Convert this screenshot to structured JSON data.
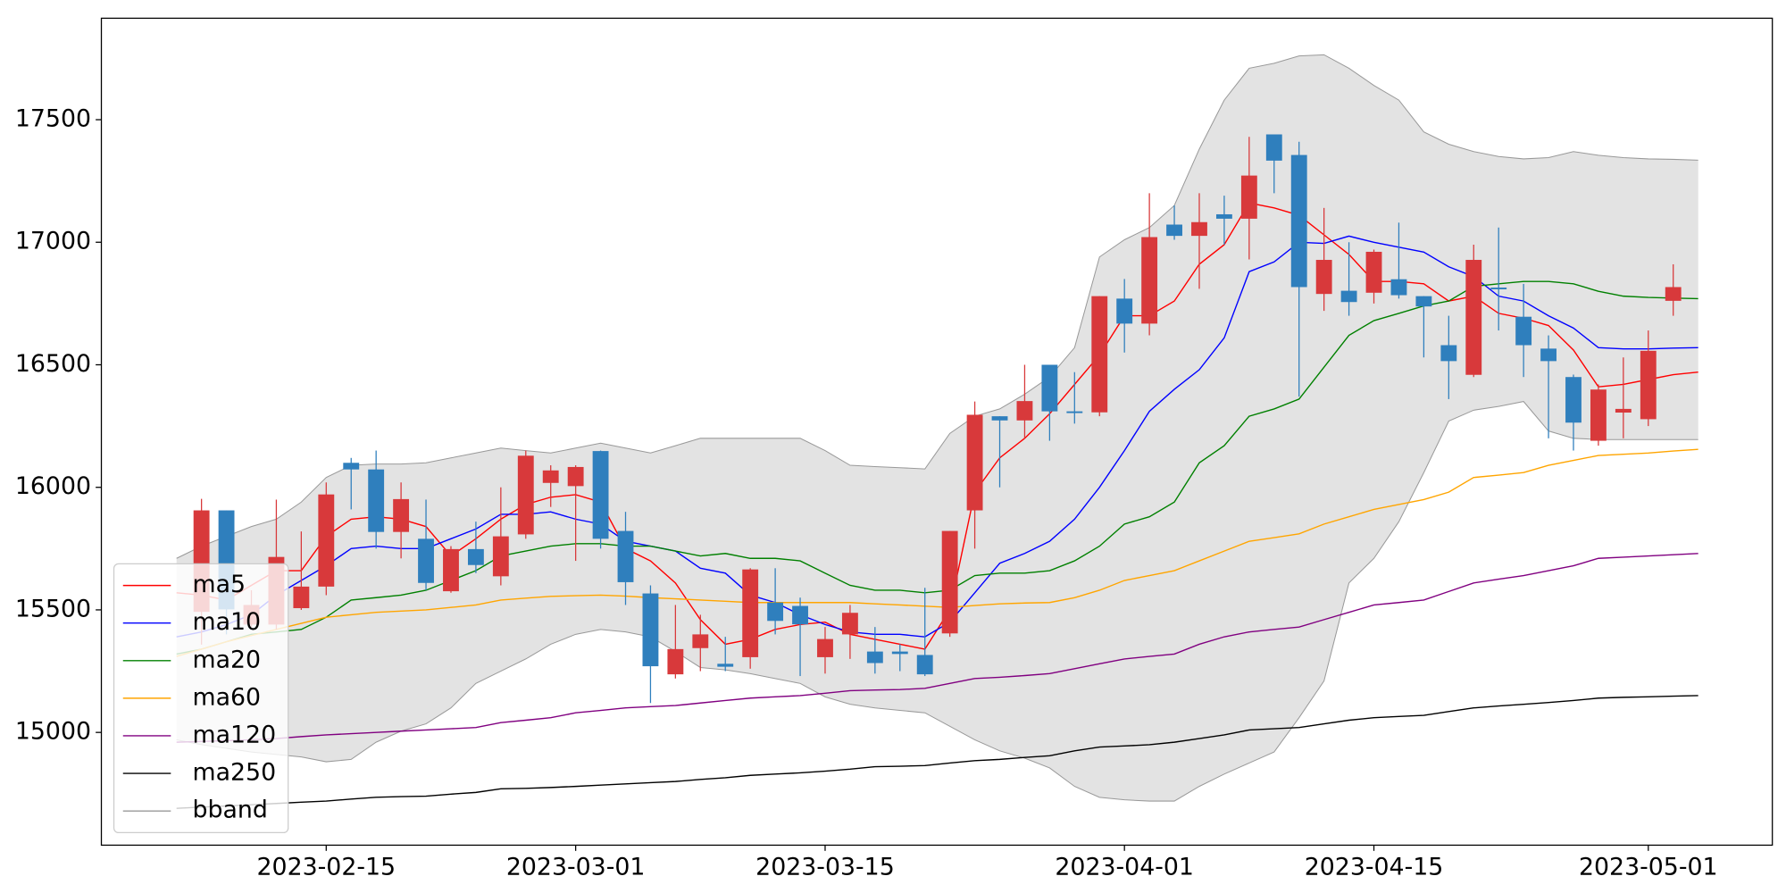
{
  "chart_data": {
    "type": "candlestick",
    "categories": [
      null,
      null,
      null,
      null,
      null,
      null,
      "2023-02-15",
      null,
      null,
      null,
      null,
      null,
      null,
      null,
      null,
      null,
      "2023-03-01",
      null,
      null,
      null,
      null,
      null,
      null,
      null,
      null,
      null,
      "2023-03-15",
      null,
      null,
      null,
      null,
      null,
      null,
      null,
      null,
      null,
      null,
      null,
      "2023-04-01",
      null,
      null,
      null,
      null,
      null,
      null,
      null,
      null,
      null,
      "2023-04-15",
      null,
      null,
      null,
      null,
      null,
      null,
      null,
      null,
      null,
      null,
      "2023-05-01",
      null,
      null
    ],
    "open": [
      null,
      15492,
      15906,
      15440,
      15440,
      15507,
      15595,
      16100,
      16073,
      15818,
      15790,
      15576,
      15748,
      15637,
      15808,
      16018,
      16005,
      16148,
      15822,
      15567,
      15237,
      15344,
      15280,
      15307,
      15530,
      15516,
      15307,
      15400,
      15330,
      15330,
      15316,
      15404,
      15906,
      16290,
      16273,
      16500,
      16310,
      16306,
      16770,
      16668,
      17072,
      17026,
      17114,
      17096,
      17440,
      17356,
      16789,
      16802,
      16794,
      16849,
      16780,
      16580,
      16459,
      16815,
      16696,
      16566,
      16450,
      16190,
      16305,
      16278,
      16761,
      null
    ],
    "high": [
      null,
      15953,
      15906,
      15580,
      15950,
      15820,
      16020,
      16120,
      16150,
      16020,
      15950,
      15760,
      15860,
      16000,
      16150,
      16090,
      16090,
      16150,
      15900,
      15600,
      15520,
      15480,
      15390,
      15670,
      15670,
      15550,
      15430,
      15520,
      15430,
      15360,
      15590,
      15822,
      16350,
      16290,
      16500,
      16500,
      16470,
      16780,
      16850,
      17200,
      17150,
      17200,
      17190,
      17430,
      17440,
      17410,
      17140,
      17000,
      16970,
      17080,
      16780,
      16700,
      16990,
      17060,
      16830,
      16620,
      16460,
      16420,
      16530,
      16640,
      16910,
      null
    ],
    "low": [
      null,
      15358,
      15400,
      15430,
      15420,
      15500,
      15560,
      15910,
      15750,
      15710,
      15580,
      15570,
      15650,
      15600,
      15790,
      15920,
      15700,
      15750,
      15520,
      15120,
      15220,
      15250,
      15250,
      15260,
      15400,
      15230,
      15240,
      15300,
      15240,
      15250,
      15230,
      15390,
      15750,
      16000,
      16200,
      16190,
      16260,
      16290,
      16550,
      16620,
      17010,
      16810,
      16990,
      16930,
      17200,
      16370,
      16720,
      16700,
      16750,
      16770,
      16530,
      16360,
      16450,
      16640,
      16450,
      16200,
      16150,
      16170,
      16200,
      16250,
      16700,
      null
    ],
    "close": [
      null,
      15906,
      15502,
      15520,
      15716,
      15595,
      15971,
      16073,
      15818,
      15952,
      15610,
      15748,
      15683,
      15800,
      16129,
      16069,
      16083,
      15790,
      15613,
      15270,
      15340,
      15400,
      15268,
      15665,
      15455,
      15441,
      15381,
      15488,
      15283,
      15320,
      15237,
      15822,
      16296,
      16273,
      16352,
      16310,
      16305,
      16780,
      16668,
      17021,
      17026,
      17082,
      17096,
      17272,
      17333,
      16817,
      16928,
      16756,
      16961,
      16784,
      16738,
      16515,
      16928,
      16810,
      16580,
      16515,
      16264,
      16399,
      16320,
      16557,
      16817,
      null
    ],
    "up_color": "#d8393b",
    "down_color": "#2f7fbd",
    "series": [
      {
        "name": "ma5",
        "color": "#ff0000",
        "values": [
          15570,
          15560,
          15540,
          15600,
          15660,
          15660,
          15800,
          15870,
          15880,
          15870,
          15840,
          15720,
          15790,
          15870,
          15930,
          15960,
          15970,
          15940,
          15750,
          15700,
          15610,
          15460,
          15360,
          15380,
          15420,
          15440,
          15450,
          15400,
          15380,
          15360,
          15340,
          15500,
          15980,
          16120,
          16200,
          16300,
          16420,
          16540,
          16700,
          16700,
          16760,
          16910,
          16990,
          17160,
          17140,
          17110,
          17030,
          16950,
          16840,
          16840,
          16830,
          16760,
          16780,
          16710,
          16690,
          16660,
          16560,
          16410,
          16420,
          16440,
          16460,
          16470
        ]
      },
      {
        "name": "ma10",
        "color": "#0000ff",
        "values": [
          15390,
          15410,
          15440,
          15480,
          15560,
          15620,
          15680,
          15750,
          15760,
          15750,
          15750,
          15790,
          15830,
          15890,
          15890,
          15900,
          15870,
          15850,
          15780,
          15760,
          15740,
          15670,
          15650,
          15560,
          15530,
          15480,
          15440,
          15410,
          15400,
          15400,
          15390,
          15450,
          15570,
          15690,
          15730,
          15780,
          15870,
          16000,
          16150,
          16310,
          16400,
          16480,
          16610,
          16880,
          16920,
          17000,
          16995,
          17025,
          17000,
          16980,
          16960,
          16900,
          16860,
          16780,
          16760,
          16700,
          16650,
          16570,
          16565,
          16565,
          16568,
          16570
        ]
      },
      {
        "name": "ma20",
        "color": "#008000",
        "values": [
          15320,
          15340,
          15370,
          15400,
          15410,
          15420,
          15470,
          15540,
          15550,
          15560,
          15580,
          15620,
          15660,
          15720,
          15740,
          15760,
          15770,
          15770,
          15760,
          15760,
          15740,
          15720,
          15730,
          15710,
          15710,
          15700,
          15650,
          15600,
          15580,
          15580,
          15570,
          15580,
          15640,
          15650,
          15650,
          15660,
          15700,
          15760,
          15850,
          15880,
          15940,
          16100,
          16170,
          16290,
          16320,
          16360,
          16490,
          16620,
          16680,
          16710,
          16740,
          16760,
          16820,
          16830,
          16840,
          16840,
          16830,
          16800,
          16780,
          16775,
          16772,
          16770
        ]
      },
      {
        "name": "ma60",
        "color": "#ffa500",
        "values": [
          15310,
          15340,
          15370,
          15395,
          15420,
          15445,
          15470,
          15480,
          15490,
          15495,
          15500,
          15510,
          15520,
          15540,
          15548,
          15555,
          15558,
          15560,
          15556,
          15550,
          15545,
          15540,
          15535,
          15530,
          15530,
          15530,
          15530,
          15530,
          15525,
          15520,
          15515,
          15510,
          15518,
          15525,
          15528,
          15530,
          15550,
          15580,
          15620,
          15640,
          15660,
          15700,
          15740,
          15780,
          15795,
          15810,
          15850,
          15880,
          15910,
          15930,
          15950,
          15980,
          16040,
          16050,
          16060,
          16090,
          16110,
          16130,
          16135,
          16140,
          16148,
          16155
        ]
      },
      {
        "name": "ma120",
        "color": "#800080",
        "values": [
          14960,
          14963,
          14966,
          14970,
          14975,
          14983,
          14990,
          14995,
          15000,
          15005,
          15010,
          15015,
          15020,
          15040,
          15050,
          15060,
          15080,
          15090,
          15100,
          15105,
          15110,
          15120,
          15130,
          15140,
          15145,
          15150,
          15160,
          15170,
          15173,
          15175,
          15180,
          15200,
          15220,
          15225,
          15232,
          15240,
          15260,
          15280,
          15300,
          15310,
          15320,
          15360,
          15390,
          15410,
          15420,
          15430,
          15460,
          15490,
          15520,
          15530,
          15540,
          15575,
          15610,
          15625,
          15640,
          15660,
          15680,
          15710,
          15715,
          15720,
          15725,
          15730
        ]
      },
      {
        "name": "ma250",
        "color": "#000000",
        "values": [
          14690,
          14695,
          14700,
          14705,
          14710,
          14715,
          14720,
          14728,
          14735,
          14738,
          14740,
          14748,
          14755,
          14770,
          14772,
          14775,
          14780,
          14785,
          14790,
          14795,
          14800,
          14808,
          14815,
          14825,
          14830,
          14835,
          14842,
          14850,
          14860,
          14862,
          14865,
          14875,
          14885,
          14890,
          14898,
          14905,
          14925,
          14940,
          14945,
          14950,
          14960,
          14975,
          14990,
          15010,
          15015,
          15020,
          15035,
          15050,
          15060,
          15065,
          15070,
          15085,
          15100,
          15108,
          15115,
          15122,
          15130,
          15140,
          15143,
          15145,
          15148,
          15150
        ]
      }
    ],
    "band": {
      "name": "bband",
      "color": "#999999",
      "fill": "#e3e3e3",
      "upper": [
        15710,
        15760,
        15800,
        15840,
        15870,
        15940,
        16040,
        16090,
        16095,
        16095,
        16100,
        16120,
        16140,
        16160,
        16150,
        16140,
        16160,
        16180,
        16160,
        16140,
        16170,
        16200,
        16200,
        16200,
        16200,
        16200,
        16150,
        16090,
        16085,
        16080,
        16075,
        16220,
        16290,
        16320,
        16380,
        16450,
        16570,
        16940,
        17010,
        17060,
        17150,
        17380,
        17580,
        17710,
        17730,
        17760,
        17765,
        17710,
        17640,
        17580,
        17450,
        17400,
        17370,
        17350,
        17340,
        17345,
        17370,
        17355,
        17345,
        17340,
        17338,
        17335
      ],
      "lower": [
        14970,
        14950,
        14935,
        14920,
        14910,
        14900,
        14880,
        14890,
        14960,
        15005,
        15035,
        15100,
        15200,
        15250,
        15300,
        15360,
        15400,
        15420,
        15410,
        15390,
        15330,
        15265,
        15255,
        15240,
        15220,
        15200,
        15145,
        15115,
        15100,
        15090,
        15080,
        15025,
        14970,
        14925,
        14895,
        14855,
        14780,
        14735,
        14725,
        14720,
        14720,
        14780,
        14830,
        14875,
        14920,
        15060,
        15210,
        15610,
        15710,
        15860,
        16060,
        16270,
        16315,
        16330,
        16350,
        16230,
        16200,
        16195,
        16195,
        16195,
        16195,
        16195
      ]
    },
    "ylim": [
      14540,
      17914
    ],
    "yticks": [
      15000,
      15500,
      16000,
      16500,
      17000,
      17500
    ],
    "legend": "lower left"
  }
}
